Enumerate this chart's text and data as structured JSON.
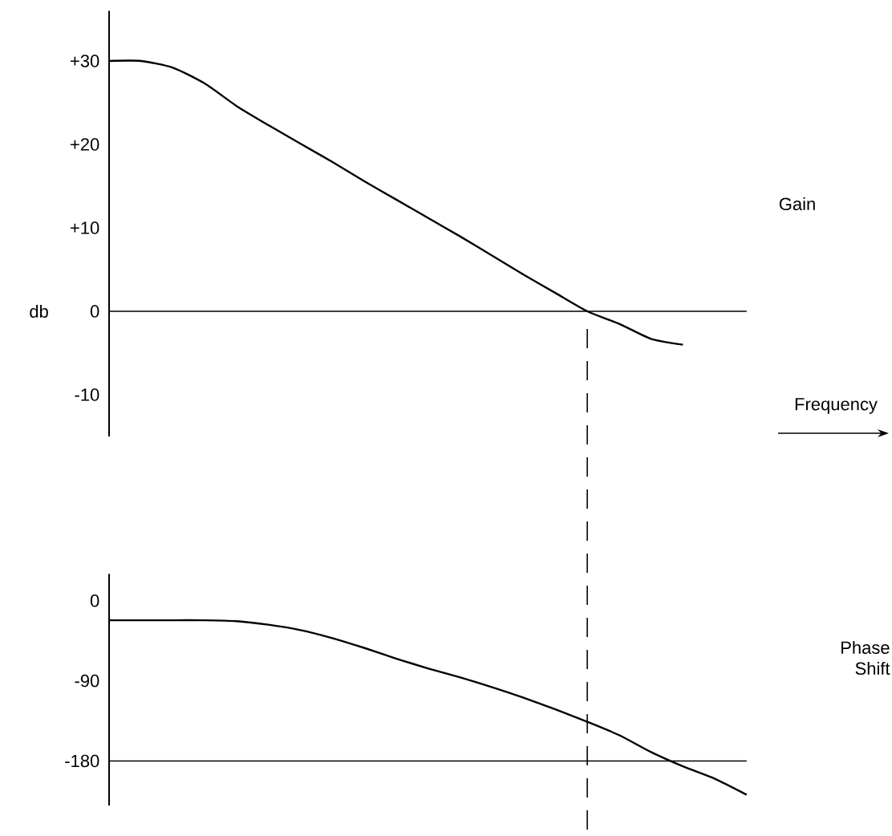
{
  "chart_data": [
    {
      "type": "line",
      "ylabel": "db",
      "categories": [
        null,
        null,
        null,
        null,
        null,
        null,
        null,
        null,
        null,
        null,
        null,
        null,
        null,
        null,
        null,
        null,
        null,
        null,
        null,
        null,
        null
      ],
      "series": [
        {
          "color": "#000000",
          "values": [
            30,
            30,
            29.2,
            27.3,
            24.6,
            22.3,
            20.1,
            17.9,
            15.6,
            13.4,
            11.2,
            9.0,
            6.7,
            4.4,
            2.2,
            0,
            -1.5,
            -3.3,
            -4.0,
            null,
            null
          ]
        }
      ],
      "ylim": [
        -15,
        36
      ],
      "yticks": [
        {
          "value": 30,
          "label": "+30"
        },
        {
          "value": 20,
          "label": "+20"
        },
        {
          "value": 10,
          "label": "+10"
        },
        0,
        -10
      ],
      "tick_labels": "y",
      "marker": "none",
      "line_style": "solid",
      "ref_lines": [
        {
          "axis": "y",
          "value": 0,
          "color": "#000000",
          "line_style": "solid"
        }
      ],
      "annotations": [
        "Gain",
        "Frequency"
      ]
    },
    {
      "type": "line",
      "categories": [
        null,
        null,
        null,
        null,
        null,
        null,
        null,
        null,
        null,
        null,
        null,
        null,
        null,
        null,
        null,
        null,
        null,
        null,
        null,
        null,
        null
      ],
      "series": [
        {
          "color": "#000000",
          "values": [
            -22,
            -22,
            -22,
            -22,
            -23,
            -27,
            -33,
            -42,
            -53,
            -65,
            -76,
            -86,
            -97,
            -109,
            -122,
            -136,
            -151,
            -170,
            -186,
            -200,
            -218
          ]
        }
      ],
      "ylim": [
        -230,
        30
      ],
      "yticks": [
        0,
        -90,
        -180
      ],
      "tick_labels": "y",
      "marker": "none",
      "line_style": "solid",
      "ref_lines": [
        {
          "axis": "y",
          "value": -180,
          "color": "#000000",
          "line_style": "solid"
        }
      ],
      "annotations": [
        "Phase Shift"
      ]
    }
  ]
}
